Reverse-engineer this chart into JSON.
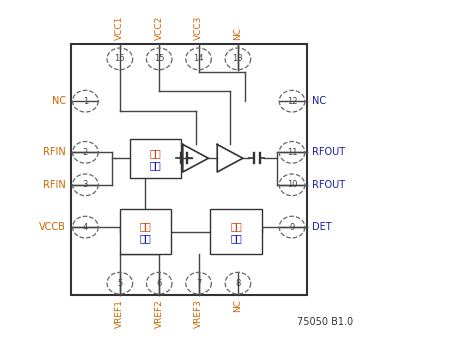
{
  "bg_color": "#ffffff",
  "ic_bg": "#ffffff",
  "border_color": "#333333",
  "pin_num_color": "#555555",
  "label_color_left": "#cc6600",
  "label_color_right": "#1a1aaa",
  "label_color_top": "#cc6600",
  "label_color_bottom": "#cc6600",
  "wire_color": "#444444",
  "block_text_color1": "#cc3300",
  "block_text_color2": "#0000cc",
  "version_text": "75050 B1.0",
  "top_pin_nums": [
    "16",
    "15",
    "14",
    "13"
  ],
  "top_pin_labels": [
    "VCC1",
    "VCC2",
    "VCC3",
    "NC"
  ],
  "bot_pin_nums": [
    "5",
    "6",
    "7",
    "8"
  ],
  "bot_pin_labels": [
    "VREF1",
    "VREF2",
    "VREF3",
    "NC"
  ],
  "left_pin_nums": [
    "1",
    "2",
    "3",
    "4"
  ],
  "left_pin_labels": [
    "NC",
    "RFIN",
    "RFIN",
    "VCCB"
  ],
  "right_pin_nums": [
    "12",
    "11",
    "10",
    "9"
  ],
  "right_pin_labels": [
    "NC",
    "RFOUT",
    "RFOUT",
    "DET"
  ]
}
